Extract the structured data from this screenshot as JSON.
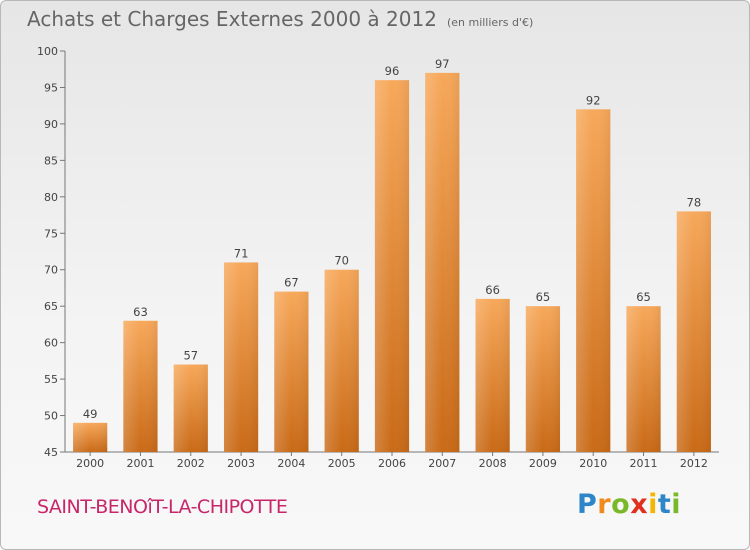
{
  "header": {
    "title": "Achats et Charges Externes 2000 à 2012",
    "unit_note": "(en milliers d'€)"
  },
  "footer": {
    "commune": "SAINT-BENOîT-LA-CHIPOTTE",
    "logo_letters": [
      "P",
      "r",
      "o",
      "x",
      "i",
      "t",
      "i"
    ],
    "logo_colors": [
      "#2e86c8",
      "#f08a1e",
      "#79b829",
      "#e0301e",
      "#f2b705",
      "#2e86c8",
      "#79b829"
    ]
  },
  "chart_data": {
    "type": "bar",
    "categories": [
      "2000",
      "2001",
      "2002",
      "2003",
      "2004",
      "2005",
      "2006",
      "2007",
      "2008",
      "2009",
      "2010",
      "2011",
      "2012"
    ],
    "values": [
      49,
      63,
      57,
      71,
      67,
      70,
      96,
      97,
      66,
      65,
      92,
      65,
      78
    ],
    "title": "Achats et Charges Externes 2000 à 2012",
    "ylim": [
      45,
      100
    ],
    "yticks": [
      45,
      50,
      55,
      60,
      65,
      70,
      75,
      80,
      85,
      90,
      95,
      100
    ],
    "grid": false,
    "colors": {
      "bar_light": "#f7a85a",
      "bar_dark": "#c96a17",
      "axis": "#777777",
      "text": "#444444"
    }
  }
}
